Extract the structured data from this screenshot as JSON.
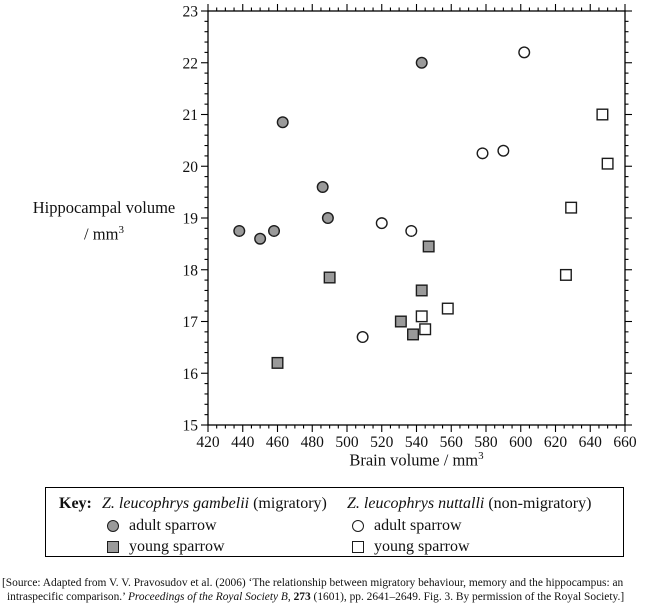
{
  "chart": {
    "ylabel_line1": "Hippocampal volume",
    "ylabel_line2_pre": "/ mm",
    "ylabel_sup": "3",
    "xlabel_pre": "Brain volume / mm",
    "xlabel_sup": "3"
  },
  "chart_data": {
    "type": "scatter",
    "title": "",
    "xlabel": "Brain volume / mm3",
    "ylabel": "Hippocampal volume / mm3",
    "xlim": [
      420,
      660
    ],
    "ylim": [
      15,
      23
    ],
    "x_major_step": 20,
    "x_minor_step": 5,
    "y_major_step": 1,
    "y_minor_step": 0.2,
    "grid": false,
    "legend_position": "below",
    "series": [
      {
        "name": "Z. leucophrys gambelii (migratory) - adult sparrow",
        "marker": "circle",
        "fill": "#9a9a9a",
        "points": [
          [
            438,
            18.75
          ],
          [
            450,
            18.6
          ],
          [
            458,
            18.75
          ],
          [
            463,
            20.85
          ],
          [
            486,
            19.6
          ],
          [
            489,
            19.0
          ],
          [
            543,
            22.0
          ]
        ]
      },
      {
        "name": "Z. leucophrys gambelii (migratory) - young sparrow",
        "marker": "square",
        "fill": "#9a9a9a",
        "points": [
          [
            460,
            16.2
          ],
          [
            490,
            17.85
          ],
          [
            531,
            17.0
          ],
          [
            538,
            16.75
          ],
          [
            543,
            17.6
          ],
          [
            547,
            18.45
          ]
        ]
      },
      {
        "name": "Z. leucophrys nuttalli (non-migratory) - adult sparrow",
        "marker": "circle",
        "fill": "#ffffff",
        "points": [
          [
            509,
            16.7
          ],
          [
            520,
            18.9
          ],
          [
            537,
            18.75
          ],
          [
            578,
            20.25
          ],
          [
            590,
            20.3
          ],
          [
            602,
            22.2
          ]
        ]
      },
      {
        "name": "Z. leucophrys nuttalli (non-migratory) - young sparrow",
        "marker": "square",
        "fill": "#ffffff",
        "points": [
          [
            543,
            17.1
          ],
          [
            545,
            16.85
          ],
          [
            558,
            17.25
          ],
          [
            626,
            17.9
          ],
          [
            629,
            19.2
          ],
          [
            647,
            21.0
          ],
          [
            650,
            20.05
          ]
        ]
      }
    ]
  },
  "legend": {
    "key_label": "Key:",
    "groups": [
      {
        "species_italic": "Z. leucophrys gambelii",
        "species_rest": " (migratory)",
        "items": [
          {
            "marker": "filled-circle",
            "label": "adult sparrow"
          },
          {
            "marker": "filled-square",
            "label": "young sparrow"
          }
        ]
      },
      {
        "species_italic": "Z. leucophrys nuttalli",
        "species_rest": " (non-migratory)",
        "items": [
          {
            "marker": "open-circle",
            "label": "adult sparrow"
          },
          {
            "marker": "open-square",
            "label": "young sparrow"
          }
        ]
      }
    ]
  },
  "source": {
    "line1": "[Source: Adapted from V. V. Pravosudov et al. (2006) ‘The relationship between migratory behaviour, memory and the hippocampus: an",
    "line2_pre": "intraspecific comparison.’ ",
    "line2_journal": "Proceedings of the Royal Society B",
    "line2_mid": ", ",
    "line2_volume": "273",
    "line2_post": " (1601), pp. 2641–2649. Fig. 3. By permission of the Royal Society.]"
  },
  "colors": {
    "marker_gray": "#9a9a9a",
    "marker_stroke": "#1c1c1c",
    "axis": "#000000"
  }
}
